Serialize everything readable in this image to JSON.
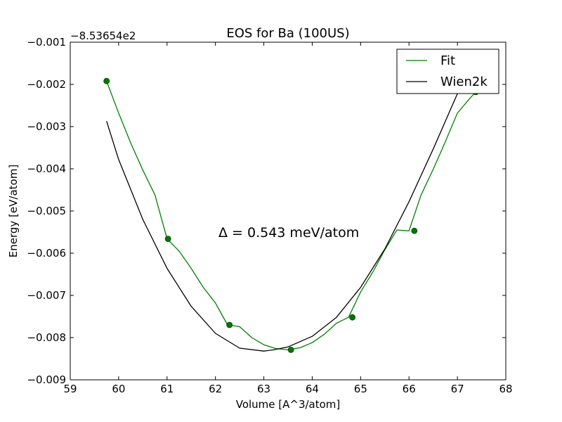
{
  "chart_data": {
    "type": "line",
    "title": "EOS for Ba (100US)",
    "xlabel": "Volume [A^3/atom]",
    "ylabel": "Energy [eV/atom]",
    "y_offset_label": "−8.53654e2",
    "annotation": "Δ = 0.543 meV/atom",
    "xlim": [
      59,
      68
    ],
    "ylim": [
      -0.009,
      -0.001
    ],
    "x_ticks": [
      59,
      60,
      61,
      62,
      63,
      64,
      65,
      66,
      67,
      68
    ],
    "x_tick_labels": [
      "59",
      "60",
      "61",
      "62",
      "63",
      "64",
      "65",
      "66",
      "67",
      "68"
    ],
    "y_ticks": [
      -0.009,
      -0.008,
      -0.007,
      -0.006,
      -0.005,
      -0.004,
      -0.003,
      -0.002,
      -0.001
    ],
    "y_tick_labels": [
      "−0.009",
      "−0.008",
      "−0.007",
      "−0.006",
      "−0.005",
      "−0.004",
      "−0.003",
      "−0.002",
      "−0.001"
    ],
    "grid": false,
    "legend_position": "top-right",
    "series": [
      {
        "name": "Fit",
        "color": "#008000",
        "kind": "line",
        "x": [
          59.75,
          60.0,
          60.25,
          60.5,
          60.75,
          61.0,
          61.25,
          61.5,
          61.75,
          62.0,
          62.25,
          62.5,
          62.75,
          63.0,
          63.25,
          63.5,
          63.75,
          64.0,
          64.25,
          64.5,
          64.75,
          65.0,
          65.25,
          65.5,
          65.75,
          66.0,
          66.25,
          66.5,
          66.75,
          67.0,
          67.25,
          67.38
        ],
        "y": [
          -0.00192,
          -0.00268,
          -0.00339,
          -0.00403,
          -0.00462,
          -0.00566,
          -0.00595,
          -0.00636,
          -0.00681,
          -0.00718,
          -0.0077,
          -0.00774,
          -0.008,
          -0.00817,
          -0.00826,
          -0.00829,
          -0.00824,
          -0.00812,
          -0.00792,
          -0.00766,
          -0.00752,
          -0.00692,
          -0.00645,
          -0.00592,
          -0.00545,
          -0.00547,
          -0.00462,
          -0.00401,
          -0.00336,
          -0.00268,
          -0.00234,
          -0.00218
        ]
      },
      {
        "name": "Wien2k",
        "color": "#000000",
        "kind": "line",
        "x": [
          59.75,
          60.0,
          60.5,
          61.0,
          61.5,
          62.0,
          62.5,
          63.0,
          63.2,
          63.5,
          64.0,
          64.5,
          65.0,
          65.5,
          66.0,
          66.5,
          67.0,
          67.1
        ],
        "y": [
          -0.00287,
          -0.00378,
          -0.0052,
          -0.00636,
          -0.00726,
          -0.0079,
          -0.00825,
          -0.00832,
          -0.00829,
          -0.00822,
          -0.00797,
          -0.00752,
          -0.00681,
          -0.0059,
          -0.00478,
          -0.00353,
          -0.00222,
          -0.00192
        ]
      },
      {
        "name": "",
        "color": "#007700",
        "kind": "markers",
        "x": [
          59.75,
          61.02,
          62.29,
          63.56,
          64.83,
          66.11,
          67.38
        ],
        "y": [
          -0.00192,
          -0.00566,
          -0.0077,
          -0.00829,
          -0.00752,
          -0.00547,
          -0.00218
        ]
      }
    ]
  }
}
